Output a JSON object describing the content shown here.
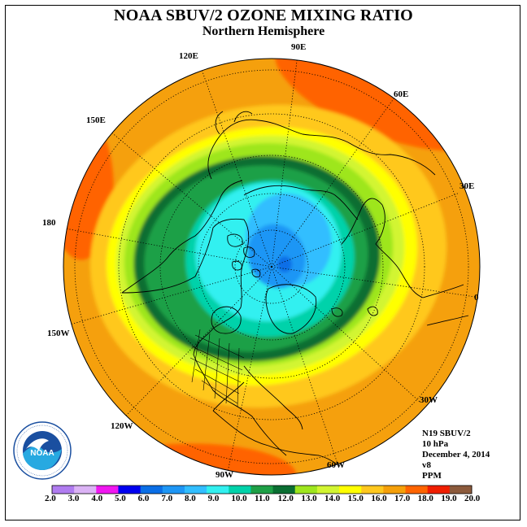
{
  "header": {
    "title": "NOAA SBUV/2 OZONE MIXING RATIO",
    "subtitle": "Northern Hemisphere"
  },
  "map": {
    "projection": "north-polar-stereographic",
    "longitude_labels": [
      "90E",
      "60E",
      "30E",
      "0",
      "30W",
      "60W",
      "90W",
      "120W",
      "150W",
      "180",
      "150E",
      "120E"
    ],
    "field": "ozone mixing ratio",
    "features": [
      "coastlines",
      "US state boundaries",
      "longitude meridians (dotted)",
      "latitude circles (dotted)"
    ]
  },
  "info": {
    "satellite": "N19 SBUV/2",
    "level": "10 hPa",
    "date": "December 4, 2014",
    "version": "v8",
    "units": "PPM"
  },
  "logo": {
    "name": "noaa-logo",
    "text": "NOAA",
    "ring_text": "NATIONAL OCEANIC AND ATMOSPHERIC ADMINISTRATION · U.S. DEPARTMENT OF COMMERCE"
  },
  "colorbar": {
    "ticks": [
      "2.0",
      "3.0",
      "4.0",
      "5.0",
      "6.0",
      "7.0",
      "8.0",
      "9.0",
      "10.0",
      "11.0",
      "12.0",
      "13.0",
      "14.0",
      "15.0",
      "16.0",
      "17.0",
      "18.0",
      "19.0",
      "20.0"
    ],
    "colors": [
      "#b07cf0",
      "#dbb3f5",
      "#f017f0",
      "#0000f0",
      "#0a6ee6",
      "#1e96f5",
      "#32beff",
      "#32f0f0",
      "#00d2aa",
      "#1ea046",
      "#0a6e32",
      "#9ee61e",
      "#d2f532",
      "#ffff00",
      "#ffc81e",
      "#f5a00a",
      "#ff6400",
      "#f01e00",
      "#8c5a3c"
    ]
  }
}
